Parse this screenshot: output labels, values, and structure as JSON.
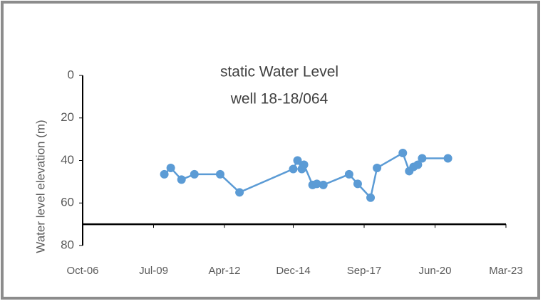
{
  "chart_data": {
    "type": "line",
    "title": [
      "static Water Level",
      "well 18-18/064"
    ],
    "y_label": "Water level elevation (m)",
    "x": [
      "2009-12",
      "2010-03",
      "2010-08",
      "2011-02",
      "2012-02",
      "2012-11",
      "2014-12",
      "2015-02",
      "2015-04",
      "2015-05",
      "2015-09",
      "2015-11",
      "2016-02",
      "2017-02",
      "2017-06",
      "2017-12",
      "2018-03",
      "2019-03",
      "2019-06",
      "2019-08",
      "2019-10",
      "2019-12",
      "2020-12"
    ],
    "series": [
      {
        "name": "static Water Level",
        "color": "#5b9bd5",
        "values": [
          46.5,
          43.5,
          49,
          46.5,
          46.5,
          55,
          44,
          40,
          44,
          42,
          51.5,
          51,
          51.5,
          46.5,
          51,
          57.5,
          43.5,
          36.5,
          45,
          43,
          42,
          39,
          39
        ]
      }
    ],
    "xlim": [
      "2006-10",
      "2023-03"
    ],
    "xticks": [
      {
        "value": "2006-10",
        "label": "Oct-06"
      },
      {
        "value": "2009-07",
        "label": "Jul-09"
      },
      {
        "value": "2012-04",
        "label": "Apr-12"
      },
      {
        "value": "2014-12",
        "label": "Dec-14"
      },
      {
        "value": "2017-09",
        "label": "Sep-17"
      },
      {
        "value": "2020-06",
        "label": "Jun-20"
      },
      {
        "value": "2023-03",
        "label": "Mar-23"
      }
    ],
    "ylim": [
      0,
      80
    ],
    "yticks": [
      0,
      20,
      40,
      60,
      80
    ],
    "y_inverted": true,
    "x_axis_crosses": 70,
    "grid": false
  }
}
